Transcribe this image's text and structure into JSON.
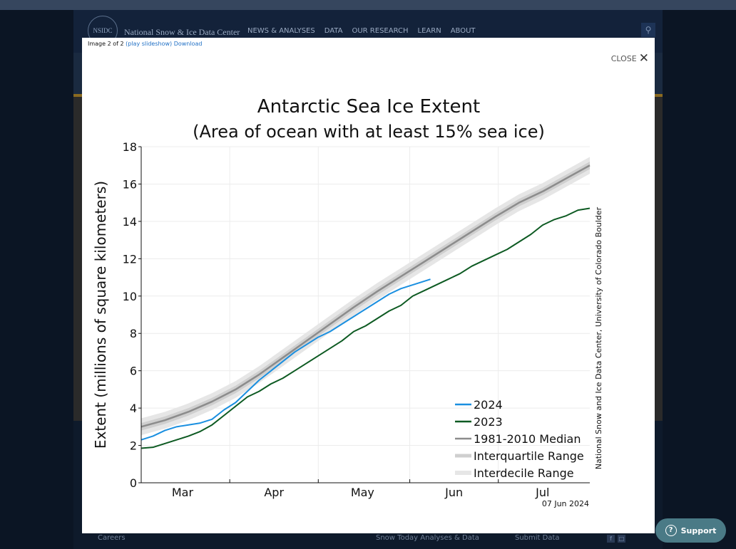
{
  "site": {
    "logo_text": "NSIDC",
    "name": "National Snow & Ice Data Center",
    "nav": [
      "NEWS & ANALYSES",
      "DATA",
      "OUR RESEARCH",
      "LEARN",
      "ABOUT"
    ],
    "footer_links": [
      "Careers",
      "Snow Today Analyses & Data",
      "Submit Data"
    ]
  },
  "modal": {
    "caption_prefix": "Image 2 of 2",
    "play_link": "(play slideshow)",
    "download_link": "Download",
    "close_label": "CLOSE"
  },
  "support": {
    "label": "Support"
  },
  "chart_data": {
    "type": "line",
    "title": "Antarctic Sea Ice Extent",
    "subtitle": "(Area of ocean with at least 15% sea ice)",
    "ylabel": "Extent (millions of square kilometers)",
    "xlabel": "",
    "ylim": [
      0,
      18
    ],
    "yticks": [
      0,
      2,
      4,
      6,
      8,
      10,
      12,
      14,
      16,
      18
    ],
    "xlim": [
      0,
      152
    ],
    "month_labels": [
      {
        "label": "Mar",
        "center": 14
      },
      {
        "label": "Apr",
        "center": 45
      },
      {
        "label": "May",
        "center": 75
      },
      {
        "label": "Jun",
        "center": 106
      },
      {
        "label": "Jul",
        "center": 136
      }
    ],
    "month_boundaries": [
      30,
      60,
      91,
      121
    ],
    "grid": true,
    "legend_position": "bottom-right",
    "date_stamp": "07 Jun 2024",
    "credit": "National Snow and Ice Data Center, University of Colorado Boulder",
    "colors": {
      "s2024": "#1a8fe0",
      "s2023": "#0d5a22",
      "median": "#8c8c8c",
      "interquartile": "#cfcfcf",
      "interdecile": "#e6e6e6"
    },
    "series": [
      {
        "name": "2024",
        "key": "s2024",
        "x": [
          0,
          4,
          8,
          12,
          16,
          20,
          24,
          28,
          32,
          36,
          40,
          44,
          48,
          52,
          56,
          60,
          64,
          68,
          72,
          76,
          80,
          84,
          88,
          92,
          96,
          98
        ],
        "y": [
          2.3,
          2.5,
          2.8,
          3.0,
          3.1,
          3.2,
          3.4,
          3.9,
          4.3,
          4.9,
          5.5,
          6.0,
          6.5,
          7.0,
          7.4,
          7.8,
          8.1,
          8.5,
          8.9,
          9.3,
          9.7,
          10.1,
          10.4,
          10.6,
          10.8,
          10.9
        ]
      },
      {
        "name": "2023",
        "key": "s2023",
        "x": [
          0,
          4,
          8,
          12,
          16,
          20,
          24,
          28,
          32,
          36,
          40,
          44,
          48,
          52,
          56,
          60,
          64,
          68,
          72,
          76,
          80,
          84,
          88,
          92,
          96,
          100,
          104,
          108,
          112,
          116,
          120,
          124,
          128,
          132,
          136,
          140,
          144,
          148,
          152
        ],
        "y": [
          1.85,
          1.9,
          2.1,
          2.3,
          2.5,
          2.75,
          3.1,
          3.6,
          4.1,
          4.6,
          4.9,
          5.3,
          5.6,
          6.0,
          6.4,
          6.8,
          7.2,
          7.6,
          8.1,
          8.4,
          8.8,
          9.2,
          9.5,
          10.0,
          10.3,
          10.6,
          10.9,
          11.2,
          11.6,
          11.9,
          12.2,
          12.5,
          12.9,
          13.3,
          13.8,
          14.1,
          14.3,
          14.6,
          14.7
        ]
      },
      {
        "name": "1981-2010 Median",
        "key": "median",
        "x": [
          0,
          8,
          16,
          24,
          32,
          40,
          48,
          56,
          64,
          72,
          80,
          88,
          96,
          104,
          112,
          120,
          128,
          136,
          144,
          152
        ],
        "y": [
          3.0,
          3.35,
          3.8,
          4.35,
          5.0,
          5.8,
          6.7,
          7.6,
          8.5,
          9.4,
          10.25,
          11.05,
          11.85,
          12.65,
          13.45,
          14.25,
          15.0,
          15.6,
          16.3,
          17.0
        ]
      }
    ],
    "bands": [
      {
        "name": "Interquartile Range",
        "key": "interquartile",
        "halfwidth": 0.2
      },
      {
        "name": "Interdecile Range",
        "key": "interdecile",
        "halfwidth": 0.45
      }
    ]
  }
}
